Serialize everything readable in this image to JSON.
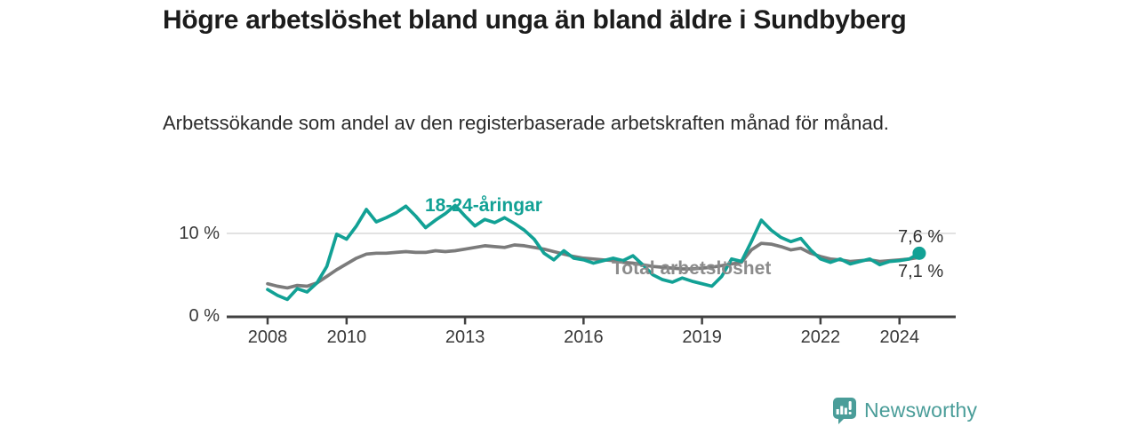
{
  "title": "Högre arbetslöshet bland unga än bland äldre i Sundbyberg",
  "subtitle": "Arbetssökande som andel av den registerbaserade arbetskraften månad för månad.",
  "chart_data": {
    "type": "line",
    "title": "Högre arbetslöshet bland unga än bland äldre i Sundbyberg",
    "subtitle": "Arbetssökande som andel av den registerbaserade arbetskraften månad för månad.",
    "y_unit": "%",
    "x_start": 2008,
    "x_step_years": 0.25,
    "xlim": [
      2007.5,
      2025.5
    ],
    "ylim": [
      0,
      14.5
    ],
    "x_ticks": [
      2008,
      2010,
      2013,
      2016,
      2019,
      2022,
      2024
    ],
    "y_ticks": [
      {
        "value": 0,
        "label": "0 %"
      },
      {
        "value": 10,
        "label": "10 %"
      }
    ],
    "y_gridlines": [
      10
    ],
    "grid": "single horizontal gridline at 10 %",
    "legend_position": "inline labels on lines",
    "axis_color": "#414141",
    "gridline_color": "#d9d9d9",
    "series": [
      {
        "name": "18-24-åringar",
        "color": "#12A195",
        "end_label": "7,6 %",
        "end_value": 7.6,
        "end_dot": true,
        "values": [
          3.2,
          2.5,
          2.0,
          3.3,
          2.9,
          4.0,
          6.0,
          9.9,
          9.3,
          10.9,
          12.9,
          11.4,
          11.9,
          12.5,
          13.3,
          12.1,
          10.7,
          11.6,
          12.4,
          13.4,
          12.1,
          10.9,
          11.7,
          11.3,
          11.9,
          11.2,
          10.4,
          9.3,
          7.6,
          6.8,
          7.9,
          7.0,
          6.8,
          6.4,
          6.7,
          7.0,
          6.7,
          7.3,
          6.2,
          5.0,
          4.4,
          4.1,
          4.6,
          4.2,
          3.9,
          3.6,
          4.8,
          6.9,
          6.6,
          9.0,
          11.6,
          10.4,
          9.5,
          9.0,
          9.4,
          8.0,
          6.9,
          6.5,
          6.9,
          6.3,
          6.6,
          6.9,
          6.2,
          6.6,
          6.7,
          6.9,
          7.6
        ]
      },
      {
        "name": "Total arbetslöshet",
        "color": "#7B7B7B",
        "end_label": "7,1 %",
        "end_value": 7.1,
        "end_dot": false,
        "values": [
          3.9,
          3.6,
          3.4,
          3.7,
          3.6,
          4.0,
          4.8,
          5.6,
          6.3,
          7.0,
          7.5,
          7.6,
          7.6,
          7.7,
          7.8,
          7.7,
          7.7,
          7.9,
          7.8,
          7.9,
          8.1,
          8.3,
          8.5,
          8.4,
          8.3,
          8.6,
          8.5,
          8.3,
          8.1,
          7.8,
          7.5,
          7.2,
          7.0,
          6.9,
          6.8,
          6.7,
          6.5,
          6.4,
          6.2,
          6.0,
          5.9,
          5.8,
          5.7,
          5.7,
          5.8,
          5.9,
          6.1,
          6.3,
          6.5,
          8.0,
          8.8,
          8.7,
          8.4,
          8.0,
          8.2,
          7.6,
          7.2,
          6.9,
          6.8,
          6.6,
          6.7,
          6.8,
          6.6,
          6.7,
          6.8,
          6.9,
          7.1
        ]
      }
    ]
  },
  "logo": {
    "text": "Newsworthy",
    "color": "#4A9D99",
    "icon": "bar-chart-speech-bubble"
  }
}
